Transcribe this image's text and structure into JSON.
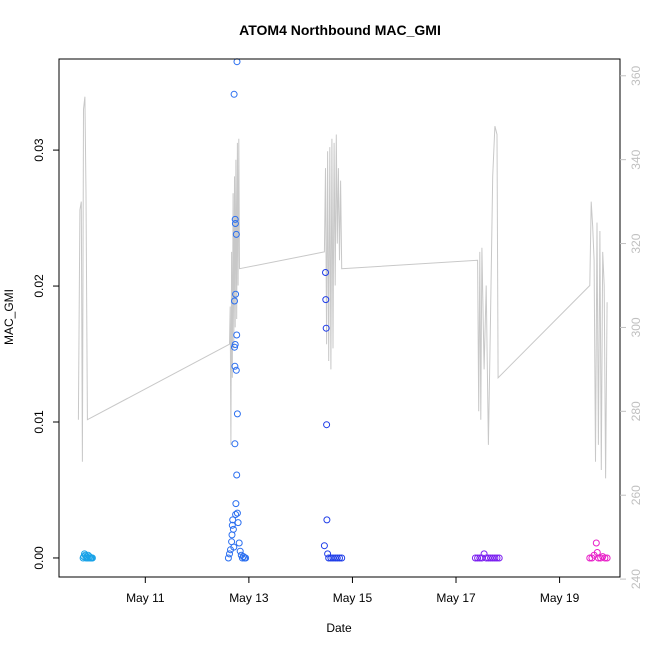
{
  "chart_data": {
    "type": "scatter",
    "title": "ATOM4 Northbound MAC_GMI",
    "xlabel": "Date",
    "ylabel": "MAC_GMI",
    "y2label": "",
    "xlim": [
      "2021-05-09T08:00",
      "2021-05-20T04:00"
    ],
    "ylim": [
      -0.0014,
      0.0367
    ],
    "y2lim": [
      240.5,
      364
    ],
    "x_ticks": [
      {
        "date": "2021-05-11T00:00",
        "label": "May 11"
      },
      {
        "date": "2021-05-13T00:00",
        "label": "May 13"
      },
      {
        "date": "2021-05-15T00:00",
        "label": "May 15"
      },
      {
        "date": "2021-05-17T00:00",
        "label": "May 17"
      },
      {
        "date": "2021-05-19T00:00",
        "label": "May 19"
      }
    ],
    "y_ticks": [
      0.0,
      0.01,
      0.02,
      0.03
    ],
    "y_tick_labels": [
      "0.00",
      "0.01",
      "0.02",
      "0.03"
    ],
    "y2_ticks": [
      240,
      260,
      280,
      300,
      320,
      340,
      360
    ],
    "y2_tick_labels": [
      "240",
      "260",
      "280",
      "300",
      "320",
      "340",
      "360"
    ],
    "grid": false,
    "legend": "none",
    "line_color": "#c8c8c8",
    "series": [
      {
        "color": "#1aa3e8",
        "points": [
          [
            "2021-05-09T19:10",
            0.0
          ],
          [
            "2021-05-09T19:30",
            0.0001
          ],
          [
            "2021-05-09T19:50",
            0.0003
          ],
          [
            "2021-05-09T20:10",
            0.0002
          ],
          [
            "2021-05-09T20:30",
            0.0
          ],
          [
            "2021-05-09T20:50",
            0.0001
          ],
          [
            "2021-05-09T21:10",
            0.0
          ],
          [
            "2021-05-09T21:30",
            0.0002
          ],
          [
            "2021-05-09T21:50",
            0.0
          ],
          [
            "2021-05-09T22:10",
            0.0001
          ],
          [
            "2021-05-09T22:30",
            0.0
          ],
          [
            "2021-05-09T22:50",
            0.0
          ],
          [
            "2021-05-09T23:10",
            0.0
          ],
          [
            "2021-05-09T23:30",
            0.0
          ]
        ]
      },
      {
        "color": "#2b6ff0",
        "points": [
          [
            "2021-05-12T14:30",
            0.0
          ],
          [
            "2021-05-12T15:00",
            0.0003
          ],
          [
            "2021-05-12T15:30",
            0.0006
          ],
          [
            "2021-05-12T16:00",
            0.0012
          ],
          [
            "2021-05-12T16:10",
            0.0017
          ],
          [
            "2021-05-12T16:20",
            0.0024
          ],
          [
            "2021-05-12T16:30",
            0.0028
          ],
          [
            "2021-05-12T16:50",
            0.0021
          ],
          [
            "2021-05-12T17:00",
            0.0008
          ],
          [
            "2021-05-12T17:10",
            0.0341
          ],
          [
            "2021-05-12T17:20",
            0.0189
          ],
          [
            "2021-05-12T17:20",
            0.0155
          ],
          [
            "2021-05-12T17:30",
            0.0141
          ],
          [
            "2021-05-12T17:30",
            0.0084
          ],
          [
            "2021-05-12T17:40",
            0.0157
          ],
          [
            "2021-05-12T17:40",
            0.0249
          ],
          [
            "2021-05-12T17:45",
            0.0246
          ],
          [
            "2021-05-12T17:50",
            0.0194
          ],
          [
            "2021-05-12T17:50",
            0.0032
          ],
          [
            "2021-05-12T18:00",
            0.004
          ],
          [
            "2021-05-12T18:10",
            0.0238
          ],
          [
            "2021-05-12T18:10",
            0.0138
          ],
          [
            "2021-05-12T18:20",
            0.0164
          ],
          [
            "2021-05-12T18:20",
            0.0061
          ],
          [
            "2021-05-12T18:30",
            0.0365
          ],
          [
            "2021-05-12T18:40",
            0.0106
          ],
          [
            "2021-05-12T18:40",
            0.0033
          ],
          [
            "2021-05-12T19:00",
            0.0026
          ],
          [
            "2021-05-12T19:30",
            0.0011
          ],
          [
            "2021-05-12T20:00",
            0.0005
          ],
          [
            "2021-05-12T20:30",
            0.0002
          ],
          [
            "2021-05-12T21:00",
            0.0
          ],
          [
            "2021-05-12T21:30",
            0.0001
          ],
          [
            "2021-05-12T22:00",
            0.0
          ],
          [
            "2021-05-12T22:30",
            0.0
          ]
        ]
      },
      {
        "color": "#1f3de8",
        "points": [
          [
            "2021-05-14T11:00",
            0.0009
          ],
          [
            "2021-05-14T11:30",
            0.021
          ],
          [
            "2021-05-14T11:40",
            0.019
          ],
          [
            "2021-05-14T11:50",
            0.0169
          ],
          [
            "2021-05-14T12:00",
            0.0098
          ],
          [
            "2021-05-14T12:10",
            0.0028
          ],
          [
            "2021-05-14T12:30",
            0.0003
          ],
          [
            "2021-05-14T13:00",
            0.0
          ],
          [
            "2021-05-14T14:00",
            0.0
          ],
          [
            "2021-05-14T15:00",
            0.0
          ],
          [
            "2021-05-14T16:00",
            0.0
          ],
          [
            "2021-05-14T17:00",
            0.0
          ],
          [
            "2021-05-14T18:00",
            0.0
          ],
          [
            "2021-05-14T19:00",
            0.0
          ]
        ]
      },
      {
        "color": "#7b1ff0",
        "points": [
          [
            "2021-05-17T09:00",
            0.0
          ],
          [
            "2021-05-17T10:00",
            0.0
          ],
          [
            "2021-05-17T11:00",
            0.0
          ],
          [
            "2021-05-17T12:00",
            0.0
          ],
          [
            "2021-05-17T13:00",
            0.0003
          ],
          [
            "2021-05-17T14:00",
            0.0
          ],
          [
            "2021-05-17T15:00",
            0.0
          ],
          [
            "2021-05-17T16:00",
            0.0
          ],
          [
            "2021-05-17T17:00",
            0.0
          ],
          [
            "2021-05-17T18:00",
            0.0
          ],
          [
            "2021-05-17T19:00",
            0.0
          ],
          [
            "2021-05-17T20:00",
            0.0
          ]
        ]
      },
      {
        "color": "#e81fc8",
        "points": [
          [
            "2021-05-19T14:00",
            0.0
          ],
          [
            "2021-05-19T15:00",
            0.0
          ],
          [
            "2021-05-19T16:00",
            0.0002
          ],
          [
            "2021-05-19T17:00",
            0.0011
          ],
          [
            "2021-05-19T17:30",
            0.0004
          ],
          [
            "2021-05-19T18:00",
            0.0
          ],
          [
            "2021-05-19T19:00",
            0.0
          ],
          [
            "2021-05-19T20:00",
            0.0001
          ],
          [
            "2021-05-19T21:00",
            0.0
          ],
          [
            "2021-05-19T22:00",
            0.0
          ]
        ]
      }
    ],
    "secondary_line": [
      [
        "2021-05-09T17:00",
        278
      ],
      [
        "2021-05-09T17:40",
        328
      ],
      [
        "2021-05-09T18:20",
        330
      ],
      [
        "2021-05-09T18:50",
        268
      ],
      [
        "2021-05-09T19:20",
        352
      ],
      [
        "2021-05-09T20:00",
        355
      ],
      [
        "2021-05-09T20:30",
        332
      ],
      [
        "2021-05-09T21:10",
        278
      ],
      [
        "2021-05-12T15:00",
        296
      ],
      [
        "2021-05-12T15:20",
        305
      ],
      [
        "2021-05-12T15:40",
        272
      ],
      [
        "2021-05-12T16:00",
        318
      ],
      [
        "2021-05-12T16:20",
        288
      ],
      [
        "2021-05-12T16:40",
        332
      ],
      [
        "2021-05-12T17:00",
        295
      ],
      [
        "2021-05-12T17:20",
        336
      ],
      [
        "2021-05-12T17:40",
        300
      ],
      [
        "2021-05-12T18:00",
        340
      ],
      [
        "2021-05-12T18:20",
        302
      ],
      [
        "2021-05-12T18:40",
        344
      ],
      [
        "2021-05-12T19:00",
        310
      ],
      [
        "2021-05-12T19:20",
        345
      ],
      [
        "2021-05-12T19:40",
        314
      ],
      [
        "2021-05-14T11:00",
        318
      ],
      [
        "2021-05-14T11:30",
        338
      ],
      [
        "2021-05-14T12:00",
        296
      ],
      [
        "2021-05-14T12:30",
        342
      ],
      [
        "2021-05-14T13:00",
        292
      ],
      [
        "2021-05-14T13:30",
        343
      ],
      [
        "2021-05-14T14:00",
        290
      ],
      [
        "2021-05-14T14:30",
        345
      ],
      [
        "2021-05-14T15:00",
        295
      ],
      [
        "2021-05-14T15:30",
        344
      ],
      [
        "2021-05-14T16:00",
        310
      ],
      [
        "2021-05-14T16:30",
        346
      ],
      [
        "2021-05-14T17:00",
        320
      ],
      [
        "2021-05-14T17:30",
        338
      ],
      [
        "2021-05-14T18:00",
        316
      ],
      [
        "2021-05-14T18:30",
        335
      ],
      [
        "2021-05-14T19:00",
        314
      ],
      [
        "2021-05-17T10:00",
        316
      ],
      [
        "2021-05-17T10:30",
        280
      ],
      [
        "2021-05-17T11:00",
        318
      ],
      [
        "2021-05-17T11:30",
        278
      ],
      [
        "2021-05-17T12:00",
        319
      ],
      [
        "2021-05-17T13:00",
        290
      ],
      [
        "2021-05-17T14:00",
        310
      ],
      [
        "2021-05-17T15:00",
        272
      ],
      [
        "2021-05-17T16:00",
        302
      ],
      [
        "2021-05-17T17:00",
        336
      ],
      [
        "2021-05-17T18:00",
        348
      ],
      [
        "2021-05-17T19:00",
        346
      ],
      [
        "2021-05-17T19:30",
        288
      ],
      [
        "2021-05-19T14:00",
        310
      ],
      [
        "2021-05-19T14:40",
        330
      ],
      [
        "2021-05-19T15:20",
        324
      ],
      [
        "2021-05-19T16:00",
        316
      ],
      [
        "2021-05-19T16:40",
        268
      ],
      [
        "2021-05-19T17:20",
        325
      ],
      [
        "2021-05-19T18:00",
        272
      ],
      [
        "2021-05-19T18:40",
        323
      ],
      [
        "2021-05-19T19:20",
        266
      ],
      [
        "2021-05-19T20:00",
        318
      ],
      [
        "2021-05-19T20:40",
        310
      ],
      [
        "2021-05-19T21:20",
        264
      ],
      [
        "2021-05-19T22:00",
        306
      ]
    ]
  }
}
